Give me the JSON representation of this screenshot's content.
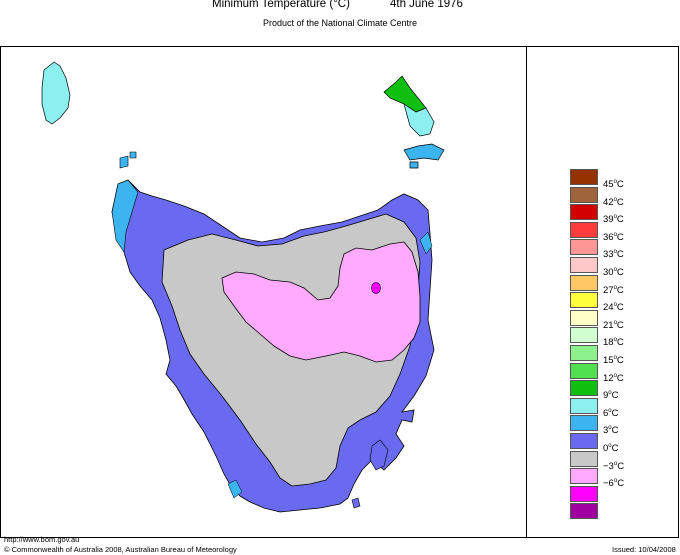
{
  "header": {
    "title": "Minimum Temperature (°C)",
    "date": "4th June 1976",
    "subtitle": "Product of the National Climate Centre"
  },
  "map": {
    "region": "Tasmania",
    "fill_colors": {
      "sea": "#ffffff",
      "range_3_6": "#6a6af0",
      "range_0_3": "#c8c8c8",
      "range_neg3_0": "#ffaaff",
      "range_6_9": "#3cb4f0",
      "range_9_12": "#8cf0f0",
      "range_12_15": "#10c010",
      "range_neg6_neg3": "#ff00ff"
    }
  },
  "legend": {
    "items": [
      {
        "label": "45",
        "unit": "C",
        "color": "#963200"
      },
      {
        "label": "42",
        "unit": "C",
        "color": "#a0643c"
      },
      {
        "label": "39",
        "unit": "C",
        "color": "#d20000"
      },
      {
        "label": "36",
        "unit": "C",
        "color": "#ff3c3c"
      },
      {
        "label": "33",
        "unit": "C",
        "color": "#ff9696"
      },
      {
        "label": "30",
        "unit": "C",
        "color": "#ffc8c8"
      },
      {
        "label": "27",
        "unit": "C",
        "color": "#ffc864"
      },
      {
        "label": "24",
        "unit": "C",
        "color": "#ffff3c"
      },
      {
        "label": "21",
        "unit": "C",
        "color": "#ffffc8"
      },
      {
        "label": "18",
        "unit": "C",
        "color": "#d2ffd2"
      },
      {
        "label": "15",
        "unit": "C",
        "color": "#8cf08c"
      },
      {
        "label": "12",
        "unit": "C",
        "color": "#50e050"
      },
      {
        "label": "9",
        "unit": "C",
        "color": "#10c010"
      },
      {
        "label": "6",
        "unit": "C",
        "color": "#8cf0f0"
      },
      {
        "label": "3",
        "unit": "C",
        "color": "#3cb4f0"
      },
      {
        "label": "0",
        "unit": "C",
        "color": "#6a6af0"
      },
      {
        "label": "−3",
        "unit": "C",
        "color": "#c8c8c8"
      },
      {
        "label": "−6",
        "unit": "C",
        "color": "#ffaaff"
      },
      {
        "label": "",
        "unit": "",
        "color": "#ff00ff"
      },
      {
        "label": "",
        "unit": "",
        "color": "#a000a0"
      }
    ]
  },
  "footer": {
    "url": "http://www.bom.gov.au",
    "copyright": "© Commonwealth of Australia 2008, Australian Bureau of Meteorology",
    "issued": "Issued: 10/04/2008"
  }
}
